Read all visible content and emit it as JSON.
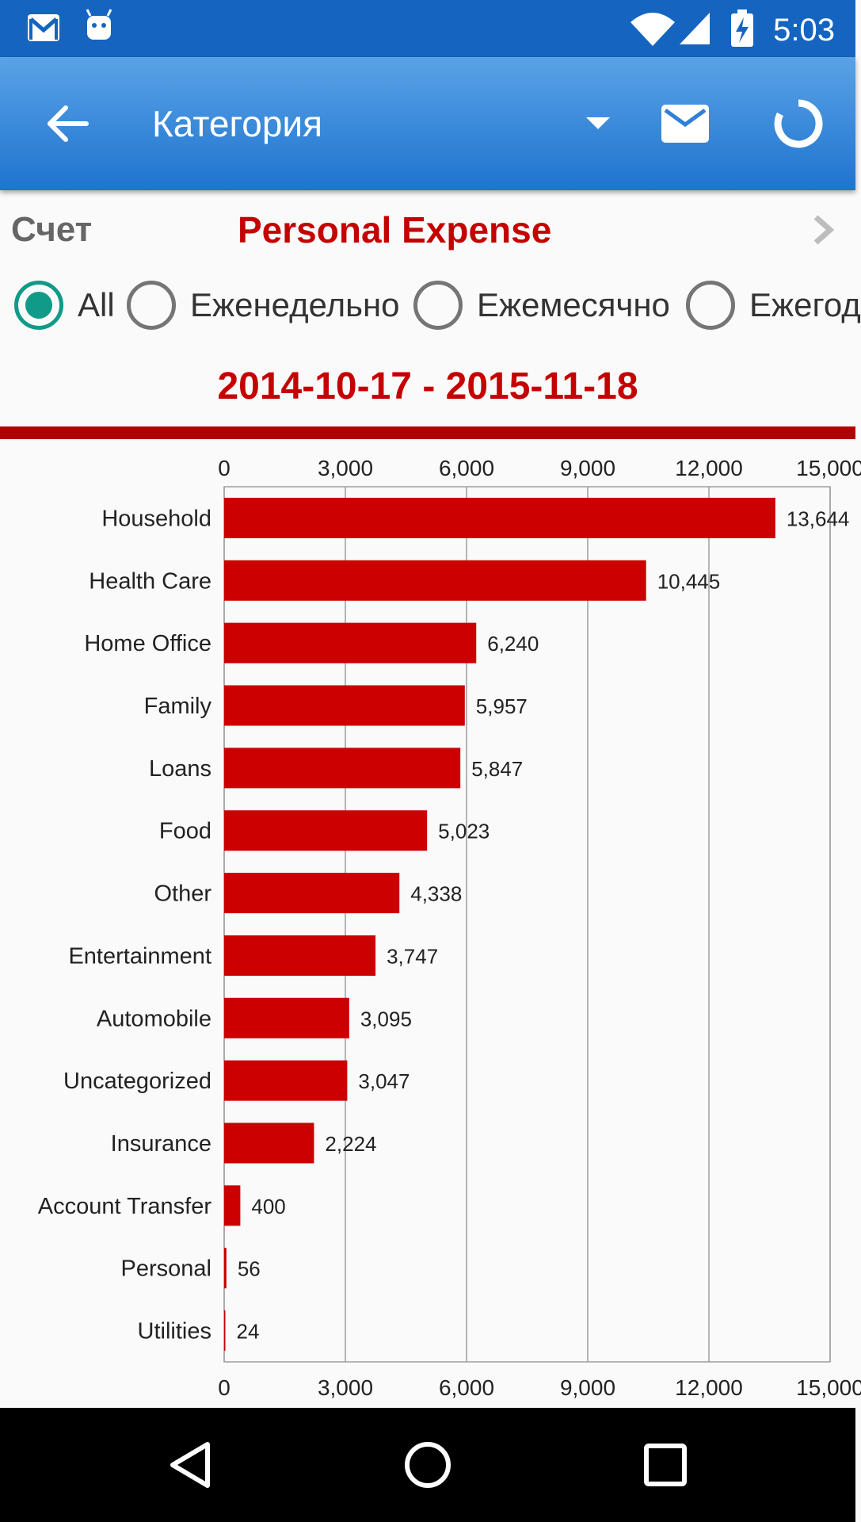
{
  "status_bar": {
    "time": "5:03",
    "icons": [
      "gmail-icon",
      "android-icon",
      "wifi-icon",
      "signal-icon",
      "battery-charging-icon"
    ]
  },
  "app_bar": {
    "title": "Категория",
    "icons": [
      "back-arrow-icon",
      "dropdown-arrow-icon",
      "mail-icon",
      "refresh-icon"
    ]
  },
  "account": {
    "label": "Счет",
    "value": "Personal Expense"
  },
  "period_options": [
    {
      "label": "All",
      "selected": true
    },
    {
      "label": "Еженедельно",
      "selected": false
    },
    {
      "label": "Ежемесячно",
      "selected": false
    },
    {
      "label": "Ежегод",
      "selected": false
    }
  ],
  "date_range": "2014-10-17 - 2015-11-18",
  "colors": {
    "status_bar": "#1565c0",
    "app_bar": "#2a7fd6",
    "accent_red": "#c50000",
    "bar_red": "#cc0000",
    "radio_teal": "#109a88"
  },
  "chart_data": {
    "type": "bar",
    "orientation": "horizontal",
    "categories": [
      "Household",
      "Health Care",
      "Home Office",
      "Family",
      "Loans",
      "Food",
      "Other",
      "Entertainment",
      "Automobile",
      "Uncategorized",
      "Insurance",
      "Account Transfer",
      "Personal",
      "Utilities"
    ],
    "values": [
      13644,
      10445,
      6240,
      5957,
      5847,
      5023,
      4338,
      3747,
      3095,
      3047,
      2224,
      400,
      56,
      24
    ],
    "value_labels": [
      "13,644",
      "10,445",
      "6,240",
      "5,957",
      "5,847",
      "5,023",
      "4,338",
      "3,747",
      "3,095",
      "3,047",
      "2,224",
      "400",
      "56",
      "24"
    ],
    "ticks": [
      0,
      3000,
      6000,
      9000,
      12000,
      15000
    ],
    "tick_labels": [
      "0",
      "3,000",
      "6,000",
      "9,000",
      "12,000",
      "15,000"
    ],
    "xlim": [
      0,
      15000
    ],
    "grid": true,
    "axis_position": "top and bottom",
    "title": "",
    "xlabel": "",
    "ylabel": ""
  },
  "nav_bar": {
    "icons": [
      "back-triangle-icon",
      "home-circle-icon",
      "recents-square-icon"
    ]
  }
}
